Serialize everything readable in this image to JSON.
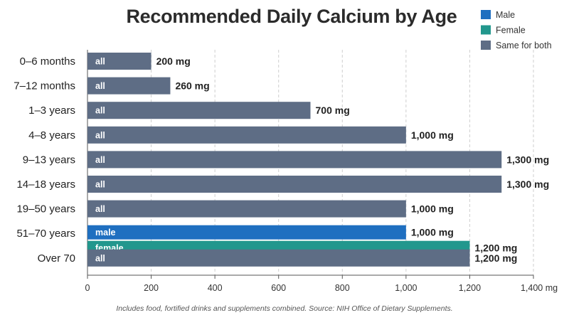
{
  "chart_data": {
    "type": "bar",
    "orientation": "horizontal",
    "title": "Recommended Daily Calcium by Age",
    "xlabel": "",
    "ylabel": "",
    "unit": "mg",
    "xlim": [
      0,
      1400
    ],
    "x_ticks": [
      "0",
      "200",
      "400",
      "600",
      "800",
      "1,000",
      "1,200",
      "1,400 mg"
    ],
    "grid": "vertical dashed",
    "legend_position": "top-right",
    "legend": [
      {
        "label": "Male",
        "color": "#1f6fc0"
      },
      {
        "label": "Female",
        "color": "#22978d"
      },
      {
        "label": "Same for both",
        "color": "#5e6d85"
      }
    ],
    "categories": [
      "0–6 months",
      "7–12 months",
      "1–3 years",
      "4–8 years",
      "9–13 years",
      "14–18 years",
      "19–50 years",
      "51–70 years",
      "Over 70"
    ],
    "bars": [
      {
        "category": "0–6 months",
        "group": "Same for both",
        "bar_label": "all",
        "value": 200,
        "value_label": "200 mg"
      },
      {
        "category": "7–12 months",
        "group": "Same for both",
        "bar_label": "all",
        "value": 260,
        "value_label": "260 mg"
      },
      {
        "category": "1–3 years",
        "group": "Same for both",
        "bar_label": "all",
        "value": 700,
        "value_label": "700 mg"
      },
      {
        "category": "4–8 years",
        "group": "Same for both",
        "bar_label": "all",
        "value": 1000,
        "value_label": "1,000 mg"
      },
      {
        "category": "9–13 years",
        "group": "Same for both",
        "bar_label": "all",
        "value": 1300,
        "value_label": "1,300 mg"
      },
      {
        "category": "14–18 years",
        "group": "Same for both",
        "bar_label": "all",
        "value": 1300,
        "value_label": "1,300 mg"
      },
      {
        "category": "19–50 years",
        "group": "Same for both",
        "bar_label": "all",
        "value": 1000,
        "value_label": "1,000 mg"
      },
      {
        "category": "51–70 years",
        "group": "Male",
        "bar_label": "male",
        "value": 1000,
        "value_label": "1,000 mg"
      },
      {
        "category": "51–70 years",
        "group": "Female",
        "bar_label": "female",
        "value": 1200,
        "value_label": "1,200 mg"
      },
      {
        "category": "Over 70",
        "group": "Same for both",
        "bar_label": "all",
        "value": 1200,
        "value_label": "1,200 mg"
      }
    ]
  },
  "footnote": "Includes food, fortified drinks and supplements combined. Source: NIH Office of Dietary Supplements."
}
